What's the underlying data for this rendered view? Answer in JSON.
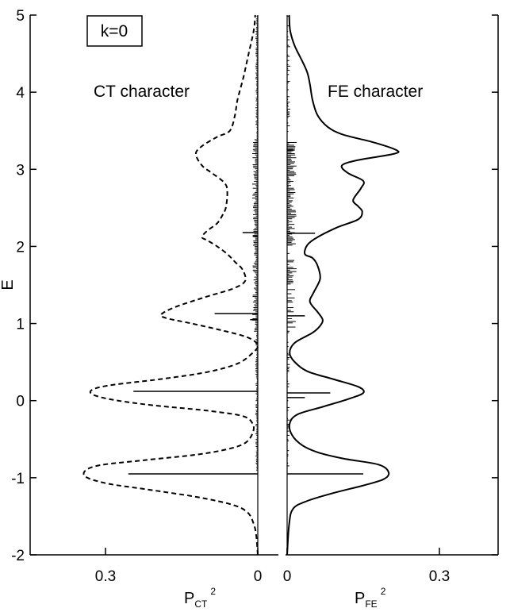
{
  "chart_data": [
    {
      "type": "line",
      "panel": "left",
      "ylabel": "E",
      "xlabel_main": "P",
      "xlabel_sub": "CT",
      "xlabel_sup": "2",
      "xlim": [
        0.4,
        0
      ],
      "ylim": [
        -2,
        5
      ],
      "yticks": [
        "-2",
        "-1",
        "0",
        "1",
        "2",
        "3",
        "4",
        "5"
      ],
      "xtick_labels": [
        "0.3",
        "0"
      ],
      "box_label": "k=0",
      "annotation": "CT character",
      "series": [
        {
          "style": "dashed",
          "points": [
            [
              0.0,
              -2.0
            ],
            [
              0.003,
              -1.75
            ],
            [
              0.008,
              -1.6
            ],
            [
              0.02,
              -1.45
            ],
            [
              0.05,
              -1.35
            ],
            [
              0.12,
              -1.25
            ],
            [
              0.22,
              -1.15
            ],
            [
              0.3,
              -1.07
            ],
            [
              0.342,
              -0.97
            ],
            [
              0.32,
              -0.85
            ],
            [
              0.22,
              -0.77
            ],
            [
              0.12,
              -0.7
            ],
            [
              0.06,
              -0.63
            ],
            [
              0.025,
              -0.55
            ],
            [
              0.01,
              -0.42
            ],
            [
              0.01,
              -0.3
            ],
            [
              0.03,
              -0.2
            ],
            [
              0.1,
              -0.13
            ],
            [
              0.22,
              -0.05
            ],
            [
              0.3,
              0.03
            ],
            [
              0.33,
              0.11
            ],
            [
              0.3,
              0.19
            ],
            [
              0.19,
              0.28
            ],
            [
              0.1,
              0.37
            ],
            [
              0.04,
              0.48
            ],
            [
              0.01,
              0.62
            ],
            [
              0.0,
              0.72
            ],
            [
              0.02,
              0.82
            ],
            [
              0.07,
              0.91
            ],
            [
              0.13,
              1.0
            ],
            [
              0.18,
              1.07
            ],
            [
              0.19,
              1.12
            ],
            [
              0.16,
              1.22
            ],
            [
              0.1,
              1.35
            ],
            [
              0.05,
              1.45
            ],
            [
              0.025,
              1.55
            ],
            [
              0.03,
              1.7
            ],
            [
              0.045,
              1.8
            ],
            [
              0.06,
              1.9
            ],
            [
              0.08,
              2.0
            ],
            [
              0.1,
              2.08
            ],
            [
              0.11,
              2.12
            ],
            [
              0.1,
              2.2
            ],
            [
              0.08,
              2.3
            ],
            [
              0.07,
              2.4
            ],
            [
              0.063,
              2.5
            ],
            [
              0.06,
              2.7
            ],
            [
              0.065,
              2.82
            ],
            [
              0.09,
              2.95
            ],
            [
              0.11,
              3.05
            ],
            [
              0.122,
              3.2
            ],
            [
              0.11,
              3.3
            ],
            [
              0.08,
              3.42
            ],
            [
              0.055,
              3.5
            ],
            [
              0.045,
              3.7
            ],
            [
              0.04,
              3.9
            ],
            [
              0.028,
              4.2
            ],
            [
              0.018,
              4.5
            ],
            [
              0.008,
              4.8
            ],
            [
              0.005,
              5.0
            ]
          ]
        }
      ],
      "sticks": [
        [
          -0.95,
          0.255
        ],
        [
          -0.95,
          0.0
        ],
        [
          0.12,
          0.245
        ],
        [
          1.13,
          0.085
        ],
        [
          1.05,
          0.015
        ],
        [
          2.18,
          0.03
        ],
        [
          2.13,
          0.01
        ]
      ]
    },
    {
      "type": "line",
      "panel": "right",
      "xlabel_main": "P",
      "xlabel_sub": "FE",
      "xlabel_sup": "2",
      "xlim": [
        0,
        0.4
      ],
      "ylim": [
        -2,
        5
      ],
      "xtick_labels": [
        "0",
        "0.3"
      ],
      "annotation": "FE character",
      "series": [
        {
          "style": "solid",
          "points": [
            [
              0.0,
              -2.0
            ],
            [
              0.004,
              -1.6
            ],
            [
              0.012,
              -1.4
            ],
            [
              0.04,
              -1.3
            ],
            [
              0.09,
              -1.2
            ],
            [
              0.15,
              -1.1
            ],
            [
              0.19,
              -1.02
            ],
            [
              0.2,
              -0.93
            ],
            [
              0.18,
              -0.83
            ],
            [
              0.11,
              -0.75
            ],
            [
              0.06,
              -0.67
            ],
            [
              0.03,
              -0.58
            ],
            [
              0.01,
              -0.45
            ],
            [
              0.005,
              -0.3
            ],
            [
              0.02,
              -0.18
            ],
            [
              0.07,
              -0.08
            ],
            [
              0.12,
              0.02
            ],
            [
              0.15,
              0.1
            ],
            [
              0.14,
              0.18
            ],
            [
              0.09,
              0.28
            ],
            [
              0.04,
              0.38
            ],
            [
              0.015,
              0.5
            ],
            [
              0.005,
              0.62
            ],
            [
              0.015,
              0.75
            ],
            [
              0.05,
              0.88
            ],
            [
              0.065,
              0.97
            ],
            [
              0.07,
              1.05
            ],
            [
              0.06,
              1.15
            ],
            [
              0.045,
              1.28
            ],
            [
              0.052,
              1.4
            ],
            [
              0.065,
              1.58
            ],
            [
              0.06,
              1.75
            ],
            [
              0.05,
              1.85
            ],
            [
              0.035,
              1.9
            ],
            [
              0.04,
              2.02
            ],
            [
              0.06,
              2.12
            ],
            [
              0.1,
              2.25
            ],
            [
              0.14,
              2.35
            ],
            [
              0.148,
              2.45
            ],
            [
              0.14,
              2.52
            ],
            [
              0.13,
              2.6
            ],
            [
              0.145,
              2.75
            ],
            [
              0.15,
              2.85
            ],
            [
              0.12,
              2.95
            ],
            [
              0.108,
              3.05
            ],
            [
              0.14,
              3.12
            ],
            [
              0.21,
              3.2
            ],
            [
              0.215,
              3.25
            ],
            [
              0.17,
              3.35
            ],
            [
              0.11,
              3.45
            ],
            [
              0.08,
              3.55
            ],
            [
              0.06,
              3.7
            ],
            [
              0.05,
              3.9
            ],
            [
              0.045,
              4.1
            ],
            [
              0.04,
              4.25
            ],
            [
              0.03,
              4.4
            ],
            [
              0.015,
              4.6
            ],
            [
              0.006,
              4.8
            ],
            [
              0.004,
              5.0
            ]
          ]
        }
      ],
      "sticks": [
        [
          -0.95,
          0.15
        ],
        [
          0.1,
          0.085
        ],
        [
          0.04,
          0.035
        ],
        [
          1.1,
          0.035
        ],
        [
          2.17,
          0.055
        ],
        [
          3.25,
          0.015
        ]
      ]
    }
  ]
}
